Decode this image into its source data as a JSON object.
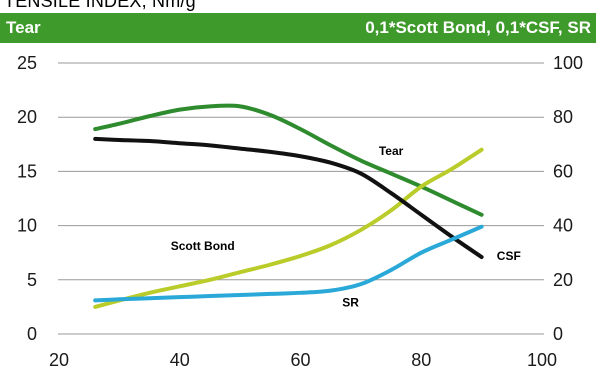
{
  "header": {
    "title": "TENSILE INDEX, Nm/g",
    "left_label": "Tear",
    "right_label": "0,1*Scott Bond, 0,1*CSF, SR"
  },
  "colors": {
    "header_band": "#3e9a2a",
    "header_text": "#ffffff",
    "grid": "#9a9a9a"
  },
  "chart_data": {
    "type": "line",
    "title": "",
    "xlabel": "",
    "ylabel": "",
    "xlim": [
      20,
      100
    ],
    "ylim_left": [
      0,
      25
    ],
    "ylim_right": [
      0,
      100
    ],
    "x_ticks": [
      "20",
      "40",
      "60",
      "80",
      "100"
    ],
    "y_left_ticks": [
      "0",
      "5",
      "10",
      "15",
      "20",
      "25"
    ],
    "y_right_ticks": [
      "0",
      "20",
      "40",
      "60",
      "80",
      "100"
    ],
    "grid": "horizontal",
    "legend": "inline labels",
    "series": [
      {
        "name": "Tear",
        "color": "#2e8b2e",
        "axis": "left",
        "x": [
          26,
          30,
          35,
          40,
          45,
          50,
          55,
          60,
          65,
          70,
          75,
          80,
          85,
          90
        ],
        "y": [
          18.9,
          19.4,
          20.1,
          20.7,
          21.0,
          21.0,
          20.2,
          18.9,
          17.4,
          16.0,
          14.8,
          13.6,
          12.3,
          11.0
        ]
      },
      {
        "name": "Scott Bond",
        "color": "#b9cc2a",
        "axis": "left",
        "x": [
          26,
          30,
          35,
          40,
          45,
          50,
          55,
          60,
          65,
          70,
          75,
          80,
          85,
          90
        ],
        "y": [
          2.5,
          3.1,
          3.8,
          4.4,
          5.0,
          5.7,
          6.4,
          7.2,
          8.2,
          9.6,
          11.4,
          13.6,
          15.2,
          17.0
        ]
      },
      {
        "name": "",
        "color": "#111111",
        "axis": "left",
        "x": [
          26,
          30,
          35,
          40,
          45,
          50,
          55,
          60,
          65,
          70,
          75,
          80,
          85,
          90
        ],
        "y": [
          18.0,
          17.9,
          17.8,
          17.6,
          17.4,
          17.1,
          16.8,
          16.4,
          15.8,
          14.8,
          13.0,
          11.0,
          9.0,
          7.1
        ]
      },
      {
        "name": "",
        "color": "#2aa9d8",
        "axis": "left",
        "x": [
          26,
          30,
          35,
          40,
          45,
          50,
          55,
          60,
          65,
          70,
          75,
          80,
          85,
          90
        ],
        "y": [
          3.1,
          3.2,
          3.3,
          3.4,
          3.5,
          3.6,
          3.7,
          3.8,
          4.0,
          4.6,
          5.9,
          7.5,
          8.7,
          9.9
        ]
      }
    ],
    "annotations": [
      {
        "text": "Tear",
        "x": 75,
        "y": 16.9
      },
      {
        "text": "Scott Bond",
        "x": 43.8,
        "y": 8.1
      },
      {
        "text": "CSF",
        "x": 94.5,
        "y": 7.2
      },
      {
        "text": "SR",
        "x": 68.3,
        "y": 2.9
      }
    ]
  }
}
